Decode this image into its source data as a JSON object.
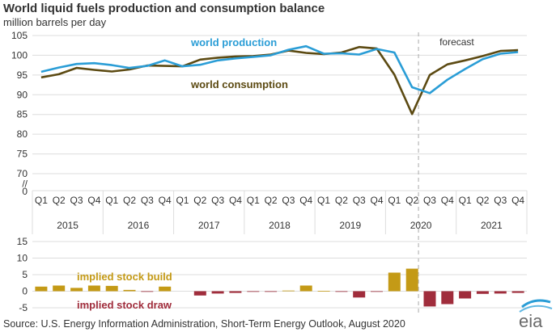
{
  "title": "World liquid fuels production and consumption balance",
  "subtitle": "million barrels per day",
  "source": "Source: U.S. Energy Information Administration, Short-Term Energy Outlook, August 2020",
  "logo_text": "eia",
  "forecast_label": "forecast",
  "axis_break": "//",
  "colors": {
    "production": "#2a9dd6",
    "consumption": "#5c4a12",
    "build": "#c49a16",
    "draw": "#a02d3c",
    "grid": "#dddddd",
    "forecast_line": "#aaaaaa"
  },
  "chart_data": [
    {
      "type": "line",
      "x": [
        "2015 Q1",
        "2015 Q2",
        "2015 Q3",
        "2015 Q4",
        "2016 Q1",
        "2016 Q2",
        "2016 Q3",
        "2016 Q4",
        "2017 Q1",
        "2017 Q2",
        "2017 Q3",
        "2017 Q4",
        "2018 Q1",
        "2018 Q2",
        "2018 Q3",
        "2018 Q4",
        "2019 Q1",
        "2019 Q2",
        "2019 Q3",
        "2019 Q4",
        "2020 Q1",
        "2020 Q2",
        "2020 Q3",
        "2020 Q4",
        "2021 Q1",
        "2021 Q2",
        "2021 Q3",
        "2021 Q4"
      ],
      "quarter_labels": [
        "Q1",
        "Q2",
        "Q3",
        "Q4",
        "Q1",
        "Q2",
        "Q3",
        "Q4",
        "Q1",
        "Q2",
        "Q3",
        "Q4",
        "Q1",
        "Q2",
        "Q3",
        "Q4",
        "Q1",
        "Q2",
        "Q3",
        "Q4",
        "Q1",
        "Q2",
        "Q3",
        "Q4",
        "Q1",
        "Q2",
        "Q3",
        "Q4"
      ],
      "years": [
        "2015",
        "2016",
        "2017",
        "2018",
        "2019",
        "2020",
        "2021"
      ],
      "y_ticks": [
        "105",
        "100",
        "95",
        "90",
        "85",
        "80",
        "75",
        "70"
      ],
      "y_zero": "0",
      "ylim": [
        70,
        105
      ],
      "series": [
        {
          "name": "world production",
          "values": [
            95.8,
            96.9,
            97.8,
            98.0,
            97.5,
            96.8,
            97.3,
            98.7,
            97.2,
            97.6,
            98.7,
            99.2,
            99.6,
            100.0,
            101.4,
            102.3,
            100.4,
            100.5,
            100.2,
            101.6,
            100.7,
            91.9,
            90.4,
            93.8,
            96.5,
            99.0,
            100.4,
            100.8
          ]
        },
        {
          "name": "world consumption",
          "values": [
            94.4,
            95.2,
            96.8,
            96.3,
            95.9,
            96.4,
            97.4,
            97.3,
            97.2,
            98.9,
            99.4,
            99.7,
            99.8,
            100.2,
            101.2,
            100.6,
            100.3,
            100.7,
            102.1,
            101.7,
            95.1,
            85.1,
            95.0,
            97.7,
            98.7,
            99.8,
            101.1,
            101.3
          ]
        }
      ]
    },
    {
      "type": "bar",
      "ylim": [
        -5,
        15
      ],
      "y_ticks": [
        "15",
        "10",
        "5",
        "0",
        "-5"
      ],
      "labels": {
        "build": "implied stock  build",
        "draw": "implied stock draw"
      },
      "values": [
        1.4,
        1.7,
        1.0,
        1.7,
        1.6,
        0.4,
        -0.1,
        1.4,
        0.0,
        -1.3,
        -0.7,
        -0.5,
        -0.2,
        -0.2,
        0.2,
        1.7,
        0.1,
        -0.2,
        -1.9,
        -0.1,
        5.6,
        6.8,
        -4.6,
        -3.9,
        -2.2,
        -0.8,
        -0.7,
        -0.5
      ]
    }
  ]
}
